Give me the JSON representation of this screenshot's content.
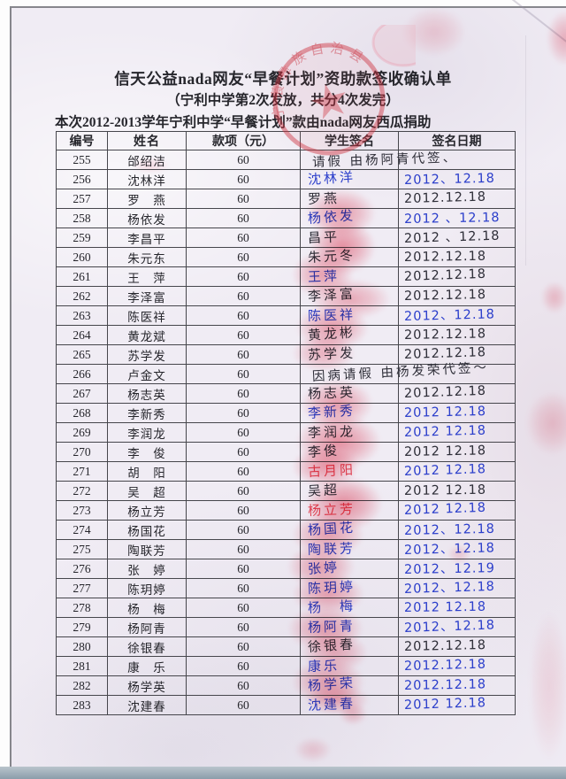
{
  "page": {
    "title": "信天公益nada网友“早餐计划”资助款签收确认单",
    "subtitle": "（宁利中学第2次发放，共分4次发完）",
    "note_line": "本次2012-2013学年宁利中学“早餐计划”款由nada网友西瓜捐助"
  },
  "stamp": {
    "text": "宁蒗彝族自治县",
    "star_glyph": "★",
    "color": "#cd2e3c"
  },
  "colors": {
    "paper": "#f0ecf4",
    "printed_text": "#26262c",
    "table_border": "#46464c",
    "blue_ink": "#2b3ecb",
    "black_ink": "#2e2e38",
    "red_ink": "#e04355",
    "smudge_red": "#ea4f66",
    "stamp_red": "#cd2e3c"
  },
  "table": {
    "headers": [
      "编号",
      "姓名",
      "款项（元）",
      "学生签名",
      "签名日期"
    ],
    "rows": [
      {
        "no": "255",
        "name": "邰绍洁",
        "amount": "60",
        "sig": "请假  由杨阿青代签、",
        "sig_ink": "black",
        "sig_span": true,
        "date": "",
        "date_ink": "black"
      },
      {
        "no": "256",
        "name": "沈林洋",
        "amount": "60",
        "sig": "沈林洋",
        "sig_ink": "blue",
        "sig_span": false,
        "date": "2012、12.18",
        "date_ink": "blue"
      },
      {
        "no": "257",
        "name": "罗　燕",
        "amount": "60",
        "sig": "罗燕",
        "sig_ink": "black",
        "sig_span": false,
        "date": "2012.12.18",
        "date_ink": "black"
      },
      {
        "no": "258",
        "name": "杨依发",
        "amount": "60",
        "sig": "杨依发",
        "sig_ink": "blue",
        "sig_span": false,
        "date": "2012 、12.18",
        "date_ink": "blue"
      },
      {
        "no": "259",
        "name": "李昌平",
        "amount": "60",
        "sig": "昌平",
        "sig_ink": "black",
        "sig_span": false,
        "date": "2012 、12.18",
        "date_ink": "black"
      },
      {
        "no": "260",
        "name": "朱元东",
        "amount": "60",
        "sig": "朱元冬",
        "sig_ink": "black",
        "sig_span": false,
        "date": "2012.12.18",
        "date_ink": "black"
      },
      {
        "no": "261",
        "name": "王　萍",
        "amount": "60",
        "sig": "王萍",
        "sig_ink": "blue",
        "sig_span": false,
        "date": "2012.12.18",
        "date_ink": "black"
      },
      {
        "no": "262",
        "name": "李泽富",
        "amount": "60",
        "sig": "李泽富",
        "sig_ink": "black",
        "sig_span": false,
        "date": "2012.12.18",
        "date_ink": "black"
      },
      {
        "no": "263",
        "name": "陈医祥",
        "amount": "60",
        "sig": "陈医祥",
        "sig_ink": "blue",
        "sig_span": false,
        "date": "2012、12.18",
        "date_ink": "blue"
      },
      {
        "no": "264",
        "name": "黄龙斌",
        "amount": "60",
        "sig": "黄龙彬",
        "sig_ink": "black",
        "sig_span": false,
        "date": "2012.12.18",
        "date_ink": "black"
      },
      {
        "no": "265",
        "name": "苏学发",
        "amount": "60",
        "sig": "苏学发",
        "sig_ink": "black",
        "sig_span": false,
        "date": "2012.12.18",
        "date_ink": "black"
      },
      {
        "no": "266",
        "name": "卢金文",
        "amount": "60",
        "sig": "因病请假 由杨发荣代签～",
        "sig_ink": "black",
        "sig_span": true,
        "date": "",
        "date_ink": "black"
      },
      {
        "no": "267",
        "name": "杨志英",
        "amount": "60",
        "sig": "杨志英",
        "sig_ink": "black",
        "sig_span": false,
        "date": "2012.12.18",
        "date_ink": "black"
      },
      {
        "no": "268",
        "name": "李新秀",
        "amount": "60",
        "sig": "李新秀",
        "sig_ink": "blue",
        "sig_span": false,
        "date": "2012 12.18",
        "date_ink": "blue"
      },
      {
        "no": "269",
        "name": "李润龙",
        "amount": "60",
        "sig": "李润龙",
        "sig_ink": "black",
        "sig_span": false,
        "date": "2012 12.18",
        "date_ink": "blue"
      },
      {
        "no": "270",
        "name": "李　俊",
        "amount": "60",
        "sig": "李俊",
        "sig_ink": "black",
        "sig_span": false,
        "date": "2012 12.18",
        "date_ink": "black"
      },
      {
        "no": "271",
        "name": "胡　阳",
        "amount": "60",
        "sig": "古月阳",
        "sig_ink": "red",
        "sig_span": false,
        "date": "2012 12.18",
        "date_ink": "blue"
      },
      {
        "no": "272",
        "name": "吴　超",
        "amount": "60",
        "sig": "吴超",
        "sig_ink": "black",
        "sig_span": false,
        "date": "2012 12.18",
        "date_ink": "black"
      },
      {
        "no": "273",
        "name": "杨立芳",
        "amount": "60",
        "sig": "杨立芳",
        "sig_ink": "red",
        "sig_span": false,
        "date": "2012 12.18",
        "date_ink": "blue"
      },
      {
        "no": "274",
        "name": "杨国花",
        "amount": "60",
        "sig": "杨国花",
        "sig_ink": "blue",
        "sig_span": false,
        "date": "2012、12.18",
        "date_ink": "blue"
      },
      {
        "no": "275",
        "name": "陶联芳",
        "amount": "60",
        "sig": "陶联芳",
        "sig_ink": "blue",
        "sig_span": false,
        "date": "2012、12.18",
        "date_ink": "blue"
      },
      {
        "no": "276",
        "name": "张　婷",
        "amount": "60",
        "sig": "张婷",
        "sig_ink": "blue",
        "sig_span": false,
        "date": "2012、12.19",
        "date_ink": "blue"
      },
      {
        "no": "277",
        "name": "陈玥婷",
        "amount": "60",
        "sig": "陈玥婷",
        "sig_ink": "blue",
        "sig_span": false,
        "date": "2012、12.18",
        "date_ink": "blue"
      },
      {
        "no": "278",
        "name": "杨　梅",
        "amount": "60",
        "sig": "杨　梅",
        "sig_ink": "blue",
        "sig_span": false,
        "date": "2012 12.18",
        "date_ink": "blue"
      },
      {
        "no": "279",
        "name": "杨阿青",
        "amount": "60",
        "sig": "杨阿青",
        "sig_ink": "blue",
        "sig_span": false,
        "date": "2012、12.18",
        "date_ink": "blue"
      },
      {
        "no": "280",
        "name": "徐银春",
        "amount": "60",
        "sig": "徐银春",
        "sig_ink": "black",
        "sig_span": false,
        "date": "2012.12.18",
        "date_ink": "black"
      },
      {
        "no": "281",
        "name": "康　乐",
        "amount": "60",
        "sig": "康乐",
        "sig_ink": "blue",
        "sig_span": false,
        "date": "2012.12.18",
        "date_ink": "blue"
      },
      {
        "no": "282",
        "name": "杨学英",
        "amount": "60",
        "sig": "杨学荣",
        "sig_ink": "blue",
        "sig_span": false,
        "date": "2012.12.18",
        "date_ink": "blue"
      },
      {
        "no": "283",
        "name": "沈建春",
        "amount": "60",
        "sig": "沈建春",
        "sig_ink": "blue",
        "sig_span": false,
        "date": "2012 12.18",
        "date_ink": "blue"
      }
    ]
  }
}
